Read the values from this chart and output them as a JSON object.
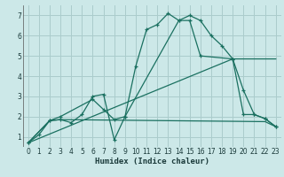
{
  "title": "",
  "xlabel": "Humidex (Indice chaleur)",
  "bg_color": "#cce8e8",
  "grid_color": "#aacccc",
  "line_color": "#1a7060",
  "xlim": [
    -0.5,
    23.5
  ],
  "ylim": [
    0.5,
    7.5
  ],
  "xticks": [
    0,
    1,
    2,
    3,
    4,
    5,
    6,
    7,
    8,
    9,
    10,
    11,
    12,
    13,
    14,
    15,
    16,
    17,
    18,
    19,
    20,
    21,
    22,
    23
  ],
  "yticks": [
    1,
    2,
    3,
    4,
    5,
    6,
    7
  ],
  "series": [
    {
      "x": [
        0,
        1,
        2,
        3,
        4,
        5,
        6,
        7,
        8,
        9,
        10,
        11,
        12,
        13,
        14,
        15,
        16,
        17,
        18,
        19,
        20,
        21,
        22,
        23
      ],
      "y": [
        0.7,
        1.1,
        1.8,
        1.85,
        1.7,
        2.1,
        3.0,
        3.1,
        0.85,
        2.0,
        4.5,
        6.3,
        6.55,
        7.1,
        6.75,
        7.0,
        6.75,
        6.0,
        5.5,
        4.85,
        3.3,
        2.1,
        1.9,
        1.5
      ],
      "marker": true
    },
    {
      "x": [
        0,
        2,
        3,
        6,
        7,
        8,
        9,
        14,
        15,
        16,
        19,
        20,
        21,
        22,
        23
      ],
      "y": [
        0.7,
        1.8,
        2.0,
        2.85,
        2.35,
        1.85,
        2.0,
        6.75,
        6.75,
        5.0,
        4.85,
        2.1,
        2.1,
        1.9,
        1.5
      ],
      "marker": true
    },
    {
      "x": [
        0,
        2,
        3,
        22,
        23
      ],
      "y": [
        0.7,
        1.8,
        1.85,
        1.75,
        1.5
      ],
      "marker": false
    },
    {
      "x": [
        0,
        19,
        23
      ],
      "y": [
        0.7,
        4.85,
        4.85
      ],
      "marker": false
    }
  ]
}
